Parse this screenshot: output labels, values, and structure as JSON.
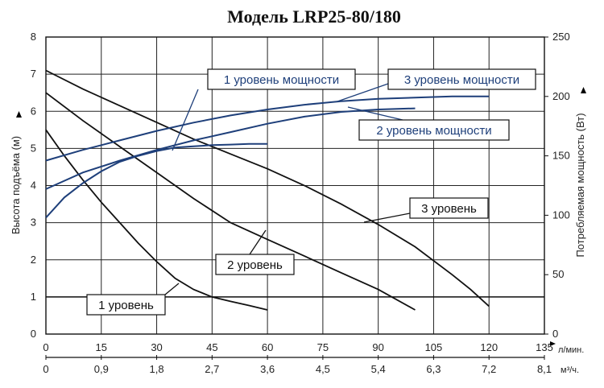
{
  "chart_data": {
    "type": "line",
    "title": "Модель LRP25-80/180",
    "x_flow": {
      "label": "л/мин.",
      "ticks": [
        "0",
        "15",
        "30",
        "45",
        "60",
        "75",
        "90",
        "105",
        "120",
        "135"
      ],
      "lim": [
        0,
        135
      ]
    },
    "x_flow_m3": {
      "label": "м³/ч.",
      "ticks": [
        "0",
        "0,9",
        "1,8",
        "2,7",
        "3,6",
        "4,5",
        "5,4",
        "6,3",
        "7,2",
        "8,1"
      ]
    },
    "y_left": {
      "label": "Высота подъёма (м)",
      "ticks": [
        "0",
        "1",
        "2",
        "3",
        "4",
        "5",
        "6",
        "7",
        "8"
      ],
      "lim": [
        0,
        8
      ]
    },
    "y_right": {
      "label": "Потребляемая мощность (Вт)",
      "ticks": [
        "0",
        "50",
        "100",
        "150",
        "200",
        "250"
      ],
      "lim": [
        0,
        250
      ]
    },
    "grid": true,
    "head_curves": [
      {
        "name": "1 уровень",
        "axis": "left",
        "color": "#111111",
        "x": [
          0,
          5,
          10,
          15,
          20,
          25,
          30,
          35,
          40,
          45,
          50,
          55,
          60
        ],
        "y": [
          5.5,
          4.8,
          4.15,
          3.55,
          3.0,
          2.45,
          1.95,
          1.5,
          1.2,
          1.0,
          0.88,
          0.77,
          0.65
        ]
      },
      {
        "name": "2 уровень",
        "axis": "left",
        "color": "#111111",
        "x": [
          0,
          10,
          20,
          30,
          40,
          50,
          60,
          70,
          80,
          90,
          100
        ],
        "y": [
          6.5,
          5.75,
          5.05,
          4.35,
          3.65,
          3.0,
          2.55,
          2.1,
          1.65,
          1.2,
          0.65
        ]
      },
      {
        "name": "3 уровень",
        "axis": "left",
        "color": "#111111",
        "x": [
          0,
          10,
          20,
          30,
          40,
          50,
          60,
          70,
          80,
          90,
          100,
          110,
          115,
          120
        ],
        "y": [
          7.1,
          6.6,
          6.15,
          5.7,
          5.25,
          4.85,
          4.45,
          4.0,
          3.5,
          2.95,
          2.35,
          1.6,
          1.2,
          0.75
        ]
      }
    ],
    "power_curves": [
      {
        "name": "1 уровень мощности",
        "axis": "right",
        "color": "#1e3f7a",
        "x": [
          0,
          5,
          10,
          15,
          20,
          25,
          30,
          35,
          40,
          45,
          50,
          55,
          60
        ],
        "y": [
          98,
          115,
          127,
          137,
          145,
          150,
          154,
          157,
          158,
          159,
          159.5,
          160,
          160
        ]
      },
      {
        "name": "2 уровень мощности",
        "axis": "right",
        "color": "#1e3f7a",
        "x": [
          0,
          10,
          20,
          30,
          40,
          50,
          60,
          70,
          80,
          90,
          100
        ],
        "y": [
          122,
          136,
          146,
          155,
          163,
          170,
          177,
          183,
          187,
          189,
          190
        ]
      },
      {
        "name": "3 уровень мощности",
        "axis": "right",
        "color": "#1e3f7a",
        "x": [
          0,
          10,
          20,
          30,
          40,
          50,
          60,
          70,
          80,
          90,
          100,
          110,
          120
        ],
        "y": [
          146,
          155,
          163,
          171,
          178,
          184,
          189,
          193,
          196,
          198,
          199,
          200,
          200
        ]
      }
    ],
    "reference_line": {
      "axis": "left",
      "y": 1
    },
    "callouts": [
      {
        "label": "1 уровень мощности",
        "color": "#1e3f7a"
      },
      {
        "label": "3 уровень мощности",
        "color": "#1e3f7a"
      },
      {
        "label": "2 уровень мощности",
        "color": "#1e3f7a"
      },
      {
        "label": "3 уровень",
        "color": "#111111"
      },
      {
        "label": "2 уровень",
        "color": "#111111"
      },
      {
        "label": "1 уровень",
        "color": "#111111"
      }
    ]
  }
}
